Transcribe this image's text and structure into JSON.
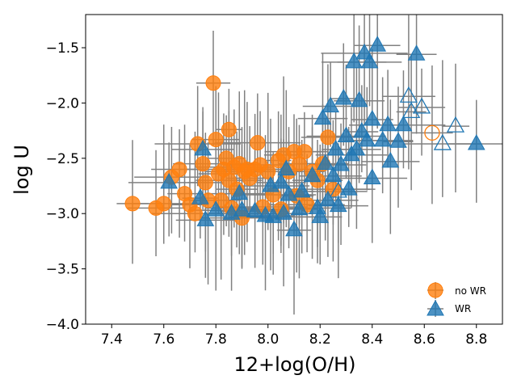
{
  "chart_data": {
    "type": "scatter",
    "title": "",
    "xlabel": "12+log(O/H)",
    "ylabel": "log U",
    "xlim": [
      7.3,
      8.9
    ],
    "ylim": [
      -4.0,
      -1.2
    ],
    "x_ticks": [
      "7.4",
      "7.6",
      "7.8",
      "8.0",
      "8.2",
      "8.4",
      "8.6",
      "8.8"
    ],
    "y_ticks": [
      "−4.0",
      "−3.5",
      "−3.0",
      "−2.5",
      "−2.0",
      "−1.5"
    ],
    "x_tick_values": [
      7.4,
      7.6,
      7.8,
      8.0,
      8.2,
      8.4,
      8.6,
      8.8
    ],
    "y_tick_values": [
      -4.0,
      -3.5,
      -3.0,
      -2.5,
      -2.0,
      -1.5
    ],
    "colors": {
      "noWR": "#ff7f0e",
      "WR": "#1f77b4",
      "errorbar": "#808080"
    },
    "legend": {
      "position": "lower-right",
      "entries": [
        "no WR",
        "WR"
      ]
    },
    "series": [
      {
        "name": "no WR",
        "marker": "circle",
        "points": [
          [
            7.48,
            -2.91
          ],
          [
            7.57,
            -2.95
          ],
          [
            7.6,
            -2.91
          ],
          [
            7.63,
            -2.67
          ],
          [
            7.66,
            -2.6
          ],
          [
            7.68,
            -2.82
          ],
          [
            7.7,
            -2.92
          ],
          [
            7.72,
            -3.0
          ],
          [
            7.73,
            -2.37
          ],
          [
            7.75,
            -2.55
          ],
          [
            7.76,
            -2.72
          ],
          [
            7.77,
            -2.88
          ],
          [
            7.79,
            -1.82
          ],
          [
            7.8,
            -2.33
          ],
          [
            7.81,
            -2.64
          ],
          [
            7.82,
            -2.88
          ],
          [
            7.83,
            -2.6
          ],
          [
            7.84,
            -2.5
          ],
          [
            7.85,
            -2.24
          ],
          [
            7.85,
            -2.7
          ],
          [
            7.86,
            -2.95
          ],
          [
            7.87,
            -2.58
          ],
          [
            7.88,
            -2.78
          ],
          [
            7.89,
            -2.55
          ],
          [
            7.9,
            -3.04
          ],
          [
            7.91,
            -2.62
          ],
          [
            7.92,
            -2.6
          ],
          [
            7.93,
            -2.68
          ],
          [
            7.95,
            -2.6
          ],
          [
            7.96,
            -2.36
          ],
          [
            7.97,
            -2.56
          ],
          [
            7.98,
            -2.94
          ],
          [
            8.0,
            -2.62
          ],
          [
            8.02,
            -2.83
          ],
          [
            8.04,
            -2.52
          ],
          [
            8.05,
            -2.96
          ],
          [
            8.06,
            -2.47
          ],
          [
            8.08,
            -2.62
          ],
          [
            8.1,
            -2.44
          ],
          [
            8.11,
            -2.84
          ],
          [
            8.12,
            -2.55
          ],
          [
            8.14,
            -2.44
          ],
          [
            8.15,
            -2.92
          ],
          [
            8.17,
            -2.62
          ],
          [
            8.19,
            -2.7
          ],
          [
            8.21,
            -2.55
          ],
          [
            8.23,
            -2.31
          ],
          [
            8.25,
            -2.78
          ],
          [
            8.63,
            -2.27
          ]
        ],
        "open": [
          false,
          false,
          false,
          false,
          false,
          false,
          false,
          false,
          false,
          false,
          false,
          false,
          false,
          false,
          false,
          false,
          false,
          false,
          false,
          false,
          false,
          false,
          false,
          false,
          false,
          false,
          false,
          false,
          false,
          false,
          false,
          false,
          false,
          false,
          false,
          false,
          false,
          false,
          false,
          false,
          false,
          false,
          false,
          false,
          false,
          false,
          false,
          false,
          true
        ]
      },
      {
        "name": "WR",
        "marker": "triangle",
        "points": [
          [
            7.62,
            -2.72
          ],
          [
            7.74,
            -2.86
          ],
          [
            7.75,
            -2.42
          ],
          [
            7.76,
            -3.06
          ],
          [
            7.8,
            -2.97
          ],
          [
            7.86,
            -3.0
          ],
          [
            7.89,
            -2.82
          ],
          [
            7.9,
            -2.97
          ],
          [
            7.95,
            -2.98
          ],
          [
            7.99,
            -3.02
          ],
          [
            8.01,
            -2.75
          ],
          [
            8.02,
            -3.03
          ],
          [
            8.05,
            -2.72
          ],
          [
            8.06,
            -3.0
          ],
          [
            8.07,
            -2.6
          ],
          [
            8.08,
            -2.83
          ],
          [
            8.1,
            -3.15
          ],
          [
            8.12,
            -2.96
          ],
          [
            8.13,
            -2.8
          ],
          [
            8.17,
            -2.66
          ],
          [
            8.19,
            -2.95
          ],
          [
            8.2,
            -3.03
          ],
          [
            8.21,
            -2.14
          ],
          [
            8.22,
            -2.55
          ],
          [
            8.23,
            -2.88
          ],
          [
            8.24,
            -2.03
          ],
          [
            8.25,
            -2.66
          ],
          [
            8.26,
            -2.42
          ],
          [
            8.27,
            -2.93
          ],
          [
            8.28,
            -2.56
          ],
          [
            8.29,
            -1.96
          ],
          [
            8.3,
            -2.3
          ],
          [
            8.31,
            -2.78
          ],
          [
            8.32,
            -2.47
          ],
          [
            8.33,
            -1.63
          ],
          [
            8.34,
            -2.42
          ],
          [
            8.35,
            -1.98
          ],
          [
            8.36,
            -2.26
          ],
          [
            8.37,
            -1.55
          ],
          [
            8.38,
            -2.34
          ],
          [
            8.39,
            -1.63
          ],
          [
            8.4,
            -2.15
          ],
          [
            8.4,
            -2.68
          ],
          [
            8.42,
            -1.48
          ],
          [
            8.44,
            -2.34
          ],
          [
            8.46,
            -2.2
          ],
          [
            8.47,
            -2.53
          ],
          [
            8.5,
            -2.35
          ],
          [
            8.52,
            -2.2
          ],
          [
            8.54,
            -1.94
          ],
          [
            8.55,
            -2.08
          ],
          [
            8.57,
            -1.56
          ],
          [
            8.59,
            -2.04
          ],
          [
            8.67,
            -2.37
          ],
          [
            8.72,
            -2.21
          ],
          [
            8.8,
            -2.37
          ],
          [
            8.27,
            -2.8
          ]
        ],
        "open": [
          false,
          false,
          false,
          false,
          false,
          false,
          false,
          false,
          false,
          false,
          false,
          false,
          false,
          false,
          false,
          false,
          false,
          false,
          false,
          false,
          false,
          false,
          false,
          false,
          false,
          false,
          false,
          false,
          false,
          false,
          false,
          false,
          false,
          false,
          false,
          false,
          false,
          false,
          false,
          false,
          false,
          false,
          false,
          false,
          false,
          false,
          false,
          false,
          false,
          true,
          true,
          false,
          true,
          true,
          true,
          false,
          true
        ]
      }
    ]
  }
}
